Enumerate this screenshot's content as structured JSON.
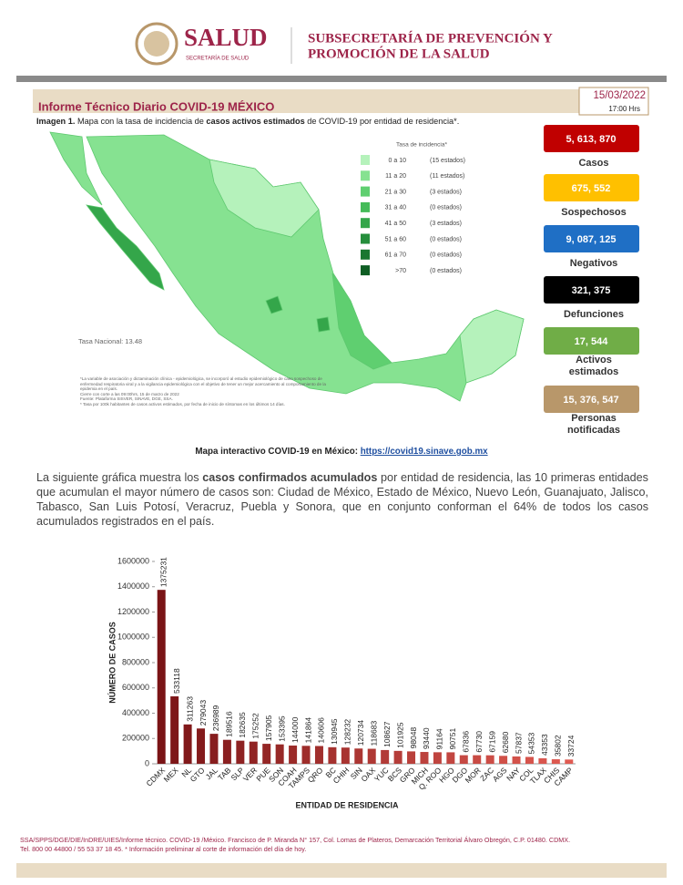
{
  "header": {
    "logo_title": "SALUD",
    "logo_subtitle": "SECRETARÍA DE SALUD",
    "org_line1": "SUBSECRETARÍA DE PREVENCIÓN Y",
    "org_line2": "PROMOCIÓN DE LA SALUD"
  },
  "report": {
    "title": "Informe Técnico Diario COVID-19 MÉXICO",
    "date": "15/03/2022",
    "time": "17:00 Hrs"
  },
  "caption": {
    "lead": "Imagen 1.",
    "text1": " Mapa con la tasa de incidencia de ",
    "bold": "casos activos estimados",
    "text2": " de COVID-19 por entidad de residencia*."
  },
  "map": {
    "legend_title": "Tasa de incidencia*",
    "legend": [
      {
        "label": "0 a 10",
        "count": "(15 estados)",
        "color": "#b5f2bb"
      },
      {
        "label": "11 a 20",
        "count": "(11 estados)",
        "color": "#86e291"
      },
      {
        "label": "21 a 30",
        "count": "(3 estados)",
        "color": "#5fcf70"
      },
      {
        "label": "31 a 40",
        "count": "(0 estados)",
        "color": "#45bb59"
      },
      {
        "label": "41 a 50",
        "count": "(3 estados)",
        "color": "#34a64a"
      },
      {
        "label": "51 a 60",
        "count": "(0 estados)",
        "color": "#258e3c"
      },
      {
        "label": "61 a 70",
        "count": "(0 estados)",
        "color": "#1a7630"
      },
      {
        "label": ">70",
        "count": "(0 estados)",
        "color": "#0f5e24"
      }
    ],
    "national_rate": "Tasa Nacional: 13.48",
    "notes": [
      "*La variable de asociación y dictaminación clínica - epidemiológica, se incorporó al estudio epidemiológico de caso sospechoso de enfermedad respiratoria viral y a la vigilancia epidemiológica con el objetivo de tener un mejor acercamiento al comportamiento de la epidemia en el país.",
      "Cierre con corte a las 09:00hrs, 15 de marzo de 2022",
      "Fuente: Plataforma SISVER, SINAVE, DGE, SSA.",
      "* Tasa por 100k habitantes de casos activos estimados, por fecha de inicio de síntomas en los últimos 14 días."
    ]
  },
  "stats": [
    {
      "value": "5, 613, 870",
      "label": "Casos",
      "color": "#c00000",
      "text_color": "#ffffff"
    },
    {
      "value": "675, 552",
      "label": "Sospechosos",
      "color": "#ffc000",
      "text_color": "#ffffff"
    },
    {
      "value": "9, 087, 125",
      "label": "Negativos",
      "color": "#1f6fc5",
      "text_color": "#ffffff"
    },
    {
      "value": "321, 375",
      "label": "Defunciones",
      "color": "#000000",
      "text_color": "#ffffff"
    },
    {
      "value": "17, 544",
      "label": "Activos estimados",
      "color": "#70ad47",
      "text_color": "#ffffff"
    },
    {
      "value": "15, 376, 547",
      "label": "Personas notificadas",
      "color": "#b8976a",
      "text_color": "#ffffff"
    }
  ],
  "link": {
    "label": "Mapa interactivo COVID-19 en México: ",
    "url": "https://covid19.sinave.gob.mx"
  },
  "paragraph": {
    "part1": "La siguiente gráfica muestra los ",
    "bold": "casos confirmados acumulados",
    "part2": " por entidad de residencia, las 10 primeras entidades que acumulan el mayor número de casos son: Ciudad de México, Estado de México, Nuevo León, Guanajuato, Jalisco, Tabasco, San Luis Potosí, Veracruz, Puebla y Sonora, que en conjunto conforman el 64% de todos los casos acumulados registrados en el país."
  },
  "chart_data": {
    "type": "bar",
    "categories": [
      "CDMX",
      "MEX",
      "NL",
      "GTO",
      "JAL",
      "TAB",
      "SLP",
      "VER",
      "PUE",
      "SON",
      "COAH",
      "TAMPS",
      "QRO",
      "BC",
      "CHIH",
      "SIN",
      "OAX",
      "YUC",
      "BCS",
      "GRO",
      "MICH",
      "Q. ROO",
      "HGO",
      "DGO",
      "MOR",
      "ZAC",
      "AGS",
      "NAY",
      "COL",
      "TLAX",
      "CHIS",
      "CAMP"
    ],
    "values": [
      1375231,
      533118,
      311263,
      279043,
      236989,
      189516,
      182635,
      175252,
      157905,
      153395,
      144000,
      141864,
      140606,
      130945,
      128232,
      120734,
      118683,
      108627,
      101925,
      98048,
      93440,
      91164,
      90751,
      67836,
      67730,
      67159,
      62680,
      57837,
      54353,
      43353,
      35802,
      33724
    ],
    "colors": [
      "#7a1416",
      "#e05b52"
    ],
    "ylim": [
      0,
      1600000
    ],
    "yticks": [
      0,
      200000,
      400000,
      600000,
      800000,
      1000000,
      1200000,
      1400000,
      1600000
    ],
    "y_label": "NÚMERO DE CASOS",
    "x_label": "ENTIDAD DE RESIDENCIA",
    "grid": false
  },
  "footer": {
    "line1": "SSA/SPPS/DGE/DIE/InDRE/UIES/Informe técnico. COVID-19 /México. Francisco de P. Miranda N° 157, Col. Lomas de Plateros, Demarcación Territorial Álvaro Obregón, C.P. 01480. CDMX.",
    "line2": "Tel. 800 00 44800 / 55 53 37 18 45. * Información preliminar al corte de información del día de hoy."
  }
}
